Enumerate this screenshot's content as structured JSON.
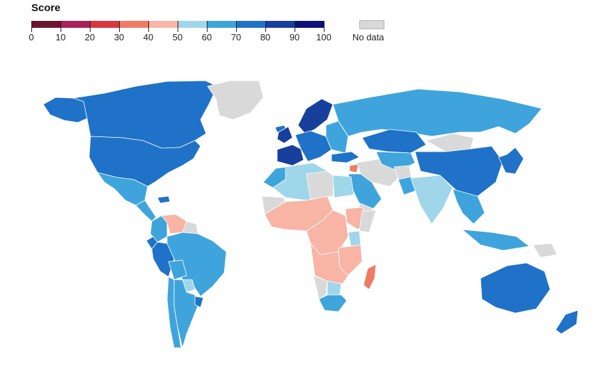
{
  "legend": {
    "title": "Score",
    "ticks": [
      "0",
      "10",
      "20",
      "30",
      "40",
      "50",
      "60",
      "70",
      "80",
      "90",
      "100"
    ],
    "bins": [
      {
        "range": "0–10",
        "color": "#6b1530"
      },
      {
        "range": "10–20",
        "color": "#a8215a"
      },
      {
        "range": "20–30",
        "color": "#d9383f"
      },
      {
        "range": "30–40",
        "color": "#f07a65"
      },
      {
        "range": "40–50",
        "color": "#f8b4a5"
      },
      {
        "range": "50–60",
        "color": "#9fd6ea"
      },
      {
        "range": "60–70",
        "color": "#3fa4dc"
      },
      {
        "range": "70–80",
        "color": "#1f72c7"
      },
      {
        "range": "80–90",
        "color": "#173f9c"
      },
      {
        "range": "90–100",
        "color": "#0d0f7a"
      }
    ],
    "no_data_label": "No data",
    "no_data_color": "#d9d9d9"
  },
  "map": {
    "type": "world choropleth",
    "regions": [
      {
        "id": "alaska",
        "bin": "70–80"
      },
      {
        "id": "canada",
        "bin": "70–80"
      },
      {
        "id": "usa",
        "bin": "70–80"
      },
      {
        "id": "greenland",
        "bin": "No data"
      },
      {
        "id": "mexico",
        "bin": "60–70"
      },
      {
        "id": "central-america",
        "bin": "60–70"
      },
      {
        "id": "caribbean",
        "bin": "70–80"
      },
      {
        "id": "venezuela",
        "bin": "40–50"
      },
      {
        "id": "guyana",
        "bin": "No data"
      },
      {
        "id": "colombia",
        "bin": "60–70"
      },
      {
        "id": "ecuador",
        "bin": "70–80"
      },
      {
        "id": "peru",
        "bin": "70–80"
      },
      {
        "id": "brazil",
        "bin": "60–70"
      },
      {
        "id": "bolivia",
        "bin": "60–70"
      },
      {
        "id": "paraguay",
        "bin": "50–60"
      },
      {
        "id": "chile",
        "bin": "60–70"
      },
      {
        "id": "argentina",
        "bin": "60–70"
      },
      {
        "id": "uruguay",
        "bin": "70–80"
      },
      {
        "id": "iceland",
        "bin": "70–80"
      },
      {
        "id": "uk-ireland",
        "bin": "80–90"
      },
      {
        "id": "france-iberia",
        "bin": "80–90"
      },
      {
        "id": "central-europe",
        "bin": "70–80"
      },
      {
        "id": "scandinavia",
        "bin": "80–90"
      },
      {
        "id": "eastern-europe",
        "bin": "60–70"
      },
      {
        "id": "russia",
        "bin": "60–70"
      },
      {
        "id": "turkey",
        "bin": "70–80"
      },
      {
        "id": "north-africa",
        "bin": "50–60"
      },
      {
        "id": "morocco",
        "bin": "60–70"
      },
      {
        "id": "libya",
        "bin": "No data"
      },
      {
        "id": "egypt",
        "bin": "50–60"
      },
      {
        "id": "syria",
        "bin": "30–40"
      },
      {
        "id": "saudi-arabia",
        "bin": "60–70"
      },
      {
        "id": "yemen",
        "bin": "No data"
      },
      {
        "id": "iran-iraq",
        "bin": "No data"
      },
      {
        "id": "kazakhstan",
        "bin": "70–80"
      },
      {
        "id": "central-asia",
        "bin": "60–70"
      },
      {
        "id": "afghanistan",
        "bin": "No data"
      },
      {
        "id": "pakistan",
        "bin": "60–70"
      },
      {
        "id": "india",
        "bin": "50–60"
      },
      {
        "id": "mongolia",
        "bin": "No data"
      },
      {
        "id": "china",
        "bin": "70–80"
      },
      {
        "id": "korea-japan",
        "bin": "70–80"
      },
      {
        "id": "southeast-asia",
        "bin": "60–70"
      },
      {
        "id": "indonesia",
        "bin": "60–70"
      },
      {
        "id": "papua-new-guinea",
        "bin": "No data"
      },
      {
        "id": "west-africa",
        "bin": "40–50"
      },
      {
        "id": "sahel",
        "bin": "No data"
      },
      {
        "id": "central-africa",
        "bin": "40–50"
      },
      {
        "id": "east-africa",
        "bin": "40–50"
      },
      {
        "id": "ethiopia",
        "bin": "40–50"
      },
      {
        "id": "kenya",
        "bin": "50–60"
      },
      {
        "id": "somalia",
        "bin": "No data"
      },
      {
        "id": "southern-africa",
        "bin": "40–50"
      },
      {
        "id": "namibia",
        "bin": "No data"
      },
      {
        "id": "botswana",
        "bin": "50–60"
      },
      {
        "id": "south-africa",
        "bin": "60–70"
      },
      {
        "id": "madagascar",
        "bin": "30–40"
      },
      {
        "id": "australia",
        "bin": "70–80"
      },
      {
        "id": "new-zealand",
        "bin": "70–80"
      }
    ]
  }
}
